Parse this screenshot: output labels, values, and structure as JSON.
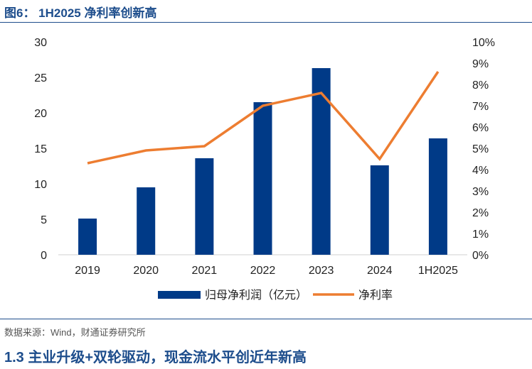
{
  "title": "图6： 1H2025 净利率创新高",
  "source": "数据来源：Wind，财通证券研究所",
  "section": "1.3 主业升级+双轮驱动，现金流水平创近年新高",
  "chart_data": {
    "type": "bar+line",
    "categories": [
      "2019",
      "2020",
      "2021",
      "2022",
      "2023",
      "2024",
      "1H2025"
    ],
    "series": [
      {
        "name": "归母净利润（亿元）",
        "type": "bar",
        "axis": "left",
        "color": "#003a87",
        "values": [
          5.1,
          9.5,
          13.6,
          21.5,
          26.3,
          12.6,
          16.4
        ]
      },
      {
        "name": "净利率",
        "type": "line",
        "axis": "right",
        "color": "#ed7d31",
        "values": [
          4.3,
          4.9,
          5.1,
          7.0,
          7.6,
          4.5,
          8.6
        ]
      }
    ],
    "left_axis": {
      "range": [
        0,
        30
      ],
      "ticks": [
        "0",
        "5",
        "10",
        "15",
        "20",
        "25",
        "30"
      ]
    },
    "right_axis": {
      "range": [
        0,
        10
      ],
      "ticks": [
        "0%",
        "1%",
        "2%",
        "3%",
        "4%",
        "5%",
        "6%",
        "7%",
        "8%",
        "9%",
        "10%"
      ]
    },
    "legend": "bottom"
  }
}
